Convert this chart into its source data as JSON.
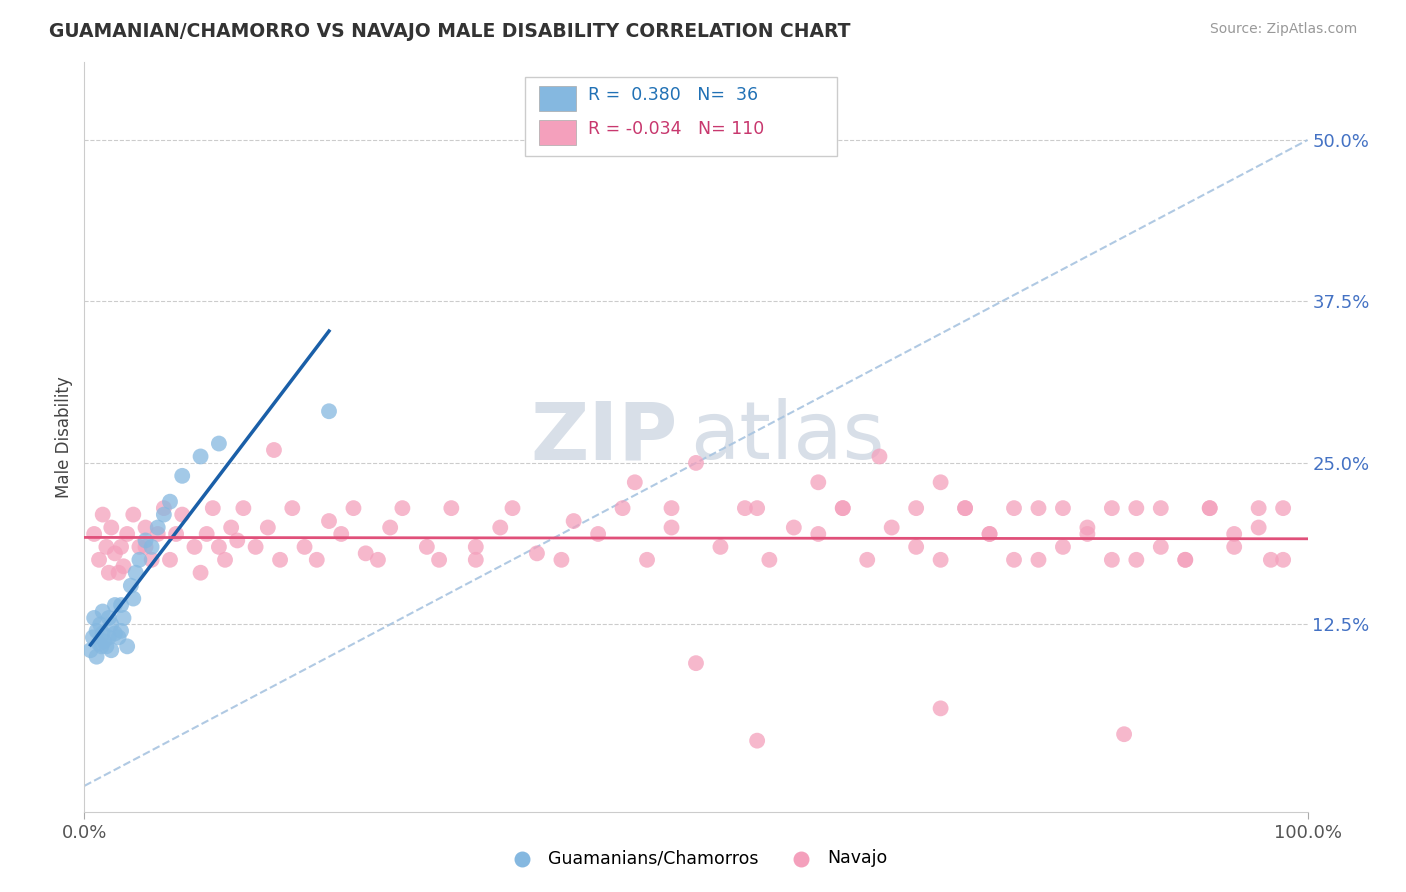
{
  "title": "GUAMANIAN/CHAMORRO VS NAVAJO MALE DISABILITY CORRELATION CHART",
  "source": "Source: ZipAtlas.com",
  "ylabel": "Male Disability",
  "ytick_labels": [
    "12.5%",
    "25.0%",
    "37.5%",
    "50.0%"
  ],
  "ytick_values": [
    0.125,
    0.25,
    0.375,
    0.5
  ],
  "xlim": [
    0.0,
    1.0
  ],
  "ylim": [
    -0.02,
    0.56
  ],
  "legend_blue_label": "Guamanians/Chamorros",
  "legend_pink_label": "Navajo",
  "R_blue": "0.380",
  "N_blue": "36",
  "R_pink": "-0.034",
  "N_pink": "110",
  "blue_scatter_color": "#85b8e0",
  "pink_scatter_color": "#f4a0bc",
  "blue_line_color": "#1a5fa8",
  "pink_line_color": "#e0507a",
  "ref_line_color": "#a8c4e0",
  "watermark_color": "#d8dfe8",
  "blue_scatter_x": [
    0.005,
    0.007,
    0.008,
    0.01,
    0.01,
    0.012,
    0.013,
    0.014,
    0.015,
    0.015,
    0.016,
    0.018,
    0.02,
    0.02,
    0.022,
    0.022,
    0.025,
    0.025,
    0.028,
    0.03,
    0.03,
    0.032,
    0.035,
    0.038,
    0.04,
    0.042,
    0.045,
    0.05,
    0.055,
    0.06,
    0.065,
    0.07,
    0.08,
    0.095,
    0.11,
    0.2
  ],
  "blue_scatter_y": [
    0.105,
    0.115,
    0.13,
    0.1,
    0.12,
    0.11,
    0.125,
    0.108,
    0.118,
    0.135,
    0.112,
    0.108,
    0.115,
    0.13,
    0.105,
    0.125,
    0.118,
    0.14,
    0.115,
    0.12,
    0.14,
    0.13,
    0.108,
    0.155,
    0.145,
    0.165,
    0.175,
    0.19,
    0.185,
    0.2,
    0.21,
    0.22,
    0.24,
    0.255,
    0.265,
    0.29
  ],
  "pink_scatter_x": [
    0.008,
    0.012,
    0.015,
    0.018,
    0.02,
    0.022,
    0.025,
    0.028,
    0.03,
    0.032,
    0.035,
    0.04,
    0.045,
    0.05,
    0.055,
    0.06,
    0.065,
    0.07,
    0.075,
    0.08,
    0.09,
    0.095,
    0.1,
    0.105,
    0.11,
    0.115,
    0.12,
    0.125,
    0.13,
    0.14,
    0.15,
    0.16,
    0.17,
    0.18,
    0.19,
    0.2,
    0.21,
    0.22,
    0.23,
    0.24,
    0.25,
    0.26,
    0.28,
    0.29,
    0.3,
    0.32,
    0.34,
    0.35,
    0.37,
    0.39,
    0.4,
    0.42,
    0.44,
    0.46,
    0.48,
    0.5,
    0.52,
    0.54,
    0.56,
    0.58,
    0.6,
    0.62,
    0.64,
    0.66,
    0.68,
    0.7,
    0.72,
    0.74,
    0.76,
    0.78,
    0.8,
    0.82,
    0.84,
    0.86,
    0.88,
    0.9,
    0.92,
    0.94,
    0.96,
    0.98,
    0.155,
    0.32,
    0.45,
    0.48,
    0.5,
    0.55,
    0.6,
    0.62,
    0.65,
    0.68,
    0.7,
    0.72,
    0.74,
    0.76,
    0.78,
    0.8,
    0.82,
    0.84,
    0.86,
    0.88,
    0.9,
    0.92,
    0.94,
    0.96,
    0.97,
    0.98,
    0.05,
    0.55,
    0.7,
    0.85
  ],
  "pink_scatter_y": [
    0.195,
    0.175,
    0.21,
    0.185,
    0.165,
    0.2,
    0.18,
    0.165,
    0.185,
    0.17,
    0.195,
    0.21,
    0.185,
    0.2,
    0.175,
    0.195,
    0.215,
    0.175,
    0.195,
    0.21,
    0.185,
    0.165,
    0.195,
    0.215,
    0.185,
    0.175,
    0.2,
    0.19,
    0.215,
    0.185,
    0.2,
    0.175,
    0.215,
    0.185,
    0.175,
    0.205,
    0.195,
    0.215,
    0.18,
    0.175,
    0.2,
    0.215,
    0.185,
    0.175,
    0.215,
    0.185,
    0.2,
    0.215,
    0.18,
    0.175,
    0.205,
    0.195,
    0.215,
    0.175,
    0.2,
    0.095,
    0.185,
    0.215,
    0.175,
    0.2,
    0.195,
    0.215,
    0.175,
    0.2,
    0.185,
    0.175,
    0.215,
    0.195,
    0.175,
    0.215,
    0.185,
    0.2,
    0.175,
    0.215,
    0.185,
    0.175,
    0.215,
    0.185,
    0.2,
    0.175,
    0.26,
    0.175,
    0.235,
    0.215,
    0.25,
    0.215,
    0.235,
    0.215,
    0.255,
    0.215,
    0.235,
    0.215,
    0.195,
    0.215,
    0.175,
    0.215,
    0.195,
    0.215,
    0.175,
    0.215,
    0.175,
    0.215,
    0.195,
    0.215,
    0.175,
    0.215,
    0.185,
    0.035,
    0.06,
    0.04
  ]
}
